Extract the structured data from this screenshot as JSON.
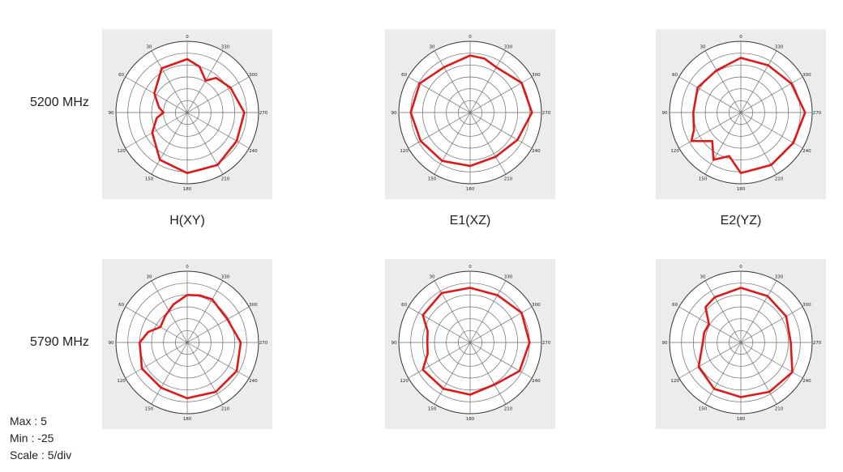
{
  "rows": [
    "5200 MHz",
    "5790 MHz"
  ],
  "planes": [
    "H(XY)",
    "E1(XZ)",
    "E2(YZ)"
  ],
  "scale_info": {
    "max": "Max : 5",
    "min": "Min : -25",
    "scale": "Scale : 5/div"
  },
  "trace_color": "#e01818",
  "chart_data": [
    {
      "type": "polar",
      "frequency": "5200 MHz",
      "plane": "H(XY)",
      "rlim": [
        -25,
        5
      ],
      "angle_ticks": [
        "0",
        "30",
        "60",
        "90",
        "120",
        "150",
        "180",
        "210",
        "240",
        "270",
        "300",
        "330"
      ],
      "angles": [
        0,
        30,
        60,
        80,
        90,
        100,
        120,
        150,
        180,
        210,
        240,
        270,
        300,
        320,
        330,
        345
      ],
      "values": [
        -2.5,
        -3.5,
        -9,
        -13,
        -15,
        -12,
        -8,
        -2,
        0.5,
        0.5,
        -1,
        -1,
        -4,
        -6,
        -9.5,
        -5
      ]
    },
    {
      "type": "polar",
      "frequency": "5200 MHz",
      "plane": "E1(XZ)",
      "rlim": [
        -25,
        5
      ],
      "angle_ticks": [
        "0",
        "30",
        "60",
        "90",
        "120",
        "150",
        "180",
        "210",
        "240",
        "270",
        "300",
        "330"
      ],
      "angles": [
        0,
        30,
        60,
        90,
        120,
        150,
        180,
        210,
        240,
        270,
        300,
        330,
        345
      ],
      "values": [
        -1,
        -3,
        -0.5,
        0,
        -1,
        -1.5,
        -2.5,
        -3.5,
        -2,
        1,
        0,
        -3,
        -1.5
      ]
    },
    {
      "type": "polar",
      "frequency": "5200 MHz",
      "plane": "E2(YZ)",
      "rlim": [
        -25,
        5
      ],
      "angle_ticks": [
        "0",
        "30",
        "60",
        "90",
        "120",
        "150",
        "180",
        "210",
        "240",
        "270",
        "300",
        "330"
      ],
      "angles": [
        0,
        30,
        60,
        90,
        110,
        120,
        135,
        150,
        165,
        180,
        210,
        240,
        270,
        300,
        330
      ],
      "values": [
        -2,
        -4.5,
        -4,
        -5,
        -4,
        -1,
        -8,
        -2,
        -6,
        0.5,
        0.5,
        0.5,
        2,
        -0.5,
        -2
      ]
    },
    {
      "type": "polar",
      "frequency": "5790 MHz",
      "plane": "H(XY)",
      "rlim": [
        -25,
        5
      ],
      "angle_ticks": [
        "0",
        "30",
        "60",
        "90",
        "120",
        "150",
        "180",
        "210",
        "240",
        "270",
        "300",
        "330"
      ],
      "angles": [
        0,
        20,
        40,
        60,
        75,
        90,
        120,
        150,
        180,
        210,
        240,
        270,
        300,
        330,
        345
      ],
      "values": [
        -5,
        -8,
        -10.5,
        -12,
        -8,
        -5,
        -3,
        -3,
        -1.5,
        -1,
        -1,
        -2.5,
        -5.5,
        -4,
        -4.5
      ]
    },
    {
      "type": "polar",
      "frequency": "5790 MHz",
      "plane": "E1(XZ)",
      "rlim": [
        -25,
        5
      ],
      "angle_ticks": [
        "0",
        "30",
        "60",
        "90",
        "120",
        "150",
        "180",
        "210",
        "240",
        "270",
        "300",
        "330"
      ],
      "angles": [
        0,
        30,
        60,
        75,
        90,
        105,
        120,
        150,
        180,
        210,
        240,
        270,
        300,
        330
      ],
      "values": [
        -2,
        -1,
        -2,
        -6.5,
        -7,
        -6.5,
        -2,
        -2.5,
        -3,
        -4.5,
        -1,
        0,
        0,
        -2
      ]
    },
    {
      "type": "polar",
      "frequency": "5790 MHz",
      "plane": "E2(YZ)",
      "rlim": [
        -25,
        5
      ],
      "angle_ticks": [
        "0",
        "30",
        "60",
        "90",
        "120",
        "150",
        "180",
        "210",
        "240",
        "270",
        "300",
        "330"
      ],
      "angles": [
        0,
        30,
        45,
        60,
        75,
        90,
        120,
        150,
        180,
        210,
        240,
        270,
        300,
        330
      ],
      "values": [
        -2,
        -3,
        -4,
        -9.5,
        -9,
        -9,
        -4.5,
        -2.5,
        -2,
        -1,
        0,
        -4,
        -3,
        -2.5
      ]
    }
  ]
}
